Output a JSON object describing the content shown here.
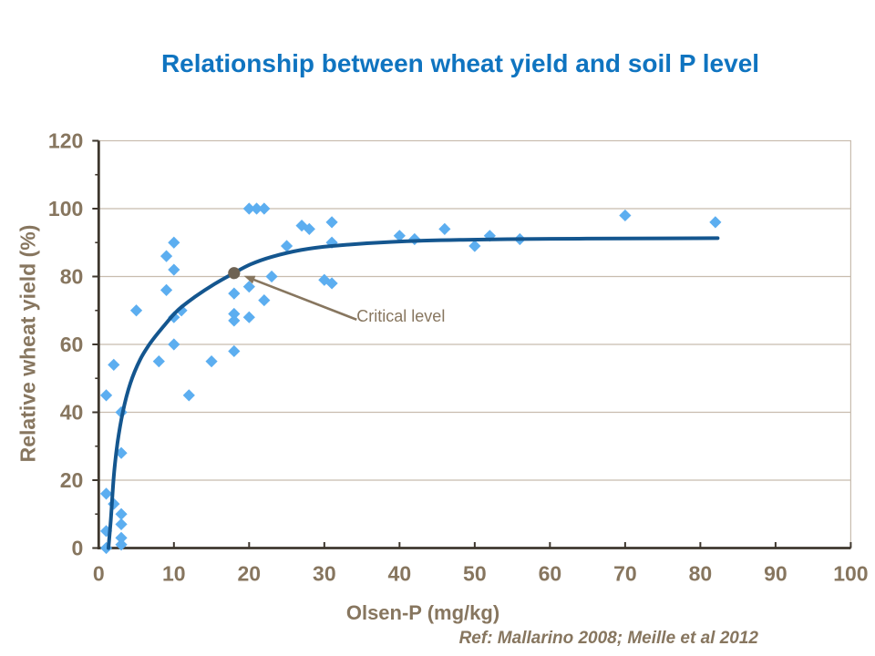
{
  "slide": {
    "title": "Relationship between wheat yield and soil P level",
    "reference": "Ref: Mallarino 2008; Meille et al 2012"
  },
  "chart_data": {
    "type": "scatter",
    "title": "Relationship between wheat yield and soil P level",
    "xlabel": "Olsen-P (mg/kg)",
    "ylabel": "Relative wheat yield (%)",
    "xlim": [
      0,
      100
    ],
    "ylim": [
      0,
      120
    ],
    "x_ticks": [
      0,
      10,
      20,
      30,
      40,
      50,
      60,
      70,
      80,
      90,
      100
    ],
    "y_ticks": [
      0,
      20,
      40,
      60,
      80,
      100,
      120
    ],
    "y_minor_ticks": [
      10,
      30,
      50,
      70,
      90,
      110
    ],
    "grid": "horizontal major gridlines, plot area framed",
    "legend": "none",
    "series": [
      {
        "name": "Observed relative yield",
        "type": "scatter",
        "marker": "diamond",
        "color": "#5caef0",
        "points": [
          [
            1,
            0
          ],
          [
            3,
            1
          ],
          [
            3,
            3
          ],
          [
            1,
            5
          ],
          [
            3,
            7
          ],
          [
            3,
            10
          ],
          [
            2,
            13
          ],
          [
            1,
            16
          ],
          [
            3,
            28
          ],
          [
            3,
            40
          ],
          [
            1,
            45
          ],
          [
            2,
            54
          ],
          [
            5,
            70
          ],
          [
            8,
            55
          ],
          [
            12,
            45
          ],
          [
            15,
            55
          ],
          [
            9,
            76
          ],
          [
            9,
            86
          ],
          [
            10,
            90
          ],
          [
            10,
            82
          ],
          [
            11,
            70
          ],
          [
            10,
            68
          ],
          [
            10,
            60
          ],
          [
            18,
            58
          ],
          [
            18,
            67
          ],
          [
            18,
            69
          ],
          [
            20,
            68
          ],
          [
            18,
            75
          ],
          [
            20,
            77
          ],
          [
            22,
            73
          ],
          [
            23,
            80
          ],
          [
            20,
            100
          ],
          [
            21,
            100
          ],
          [
            22,
            100
          ],
          [
            25,
            89
          ],
          [
            27,
            95
          ],
          [
            28,
            94
          ],
          [
            31,
            96
          ],
          [
            31,
            90
          ],
          [
            30,
            79
          ],
          [
            31,
            78
          ],
          [
            40,
            92
          ],
          [
            42,
            91
          ],
          [
            46,
            94
          ],
          [
            50,
            89
          ],
          [
            52,
            92
          ],
          [
            56,
            91
          ],
          [
            70,
            98
          ],
          [
            82,
            96
          ]
        ]
      },
      {
        "name": "Fitted response curve",
        "type": "line",
        "color": "#14568f",
        "points": [
          [
            1.3,
            0
          ],
          [
            1.6,
            8
          ],
          [
            2.0,
            21
          ],
          [
            2.5,
            31
          ],
          [
            3.2,
            40
          ],
          [
            4.2,
            48.5
          ],
          [
            5.5,
            55.5
          ],
          [
            6.9,
            60.5
          ],
          [
            8.5,
            65
          ],
          [
            10.5,
            70
          ],
          [
            12.8,
            74
          ],
          [
            15.4,
            77.8
          ],
          [
            17.8,
            80.8
          ],
          [
            20.2,
            83.6
          ],
          [
            23,
            85.8
          ],
          [
            26.9,
            87.8
          ],
          [
            31,
            89
          ],
          [
            39,
            90.2
          ],
          [
            48,
            90.8
          ],
          [
            60,
            91.1
          ],
          [
            70,
            91.2
          ],
          [
            82.3,
            91.3
          ]
        ]
      },
      {
        "name": "Critical level point",
        "type": "scatter",
        "marker": "circle",
        "color": "#6e6253",
        "points": [
          [
            18,
            81
          ]
        ]
      }
    ],
    "annotation": {
      "text": "Critical level",
      "label_at": [
        34.3,
        71.0
      ],
      "arrow_from": [
        34.3,
        67.3
      ],
      "arrow_to": [
        19.3,
        80.2
      ],
      "color": "#87765f"
    },
    "colors": {
      "title": "#0f74c0",
      "axis_line": "#3e372e",
      "gridline": "#c8bcae",
      "tick_labels": "#87765f",
      "marker": "#5caef0",
      "curve": "#14568f",
      "critical_point": "#6e6253"
    }
  }
}
